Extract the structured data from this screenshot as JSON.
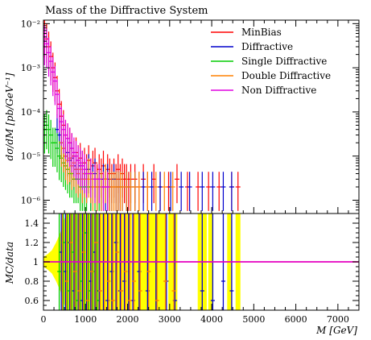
{
  "chart_data": [
    {
      "type": "scatter",
      "panel": "main",
      "title": "Mass of the Diffractive System",
      "ylabel": "dσ/dM [pb/GeV⁻¹]",
      "xlim": [
        0,
        7500
      ],
      "ylim": [
        5e-07,
        0.012
      ],
      "yscale": "log",
      "yticks": [
        {
          "value": 1e-06,
          "label": "10⁻⁶"
        },
        {
          "value": 1e-05,
          "label": "10⁻⁵"
        },
        {
          "value": 0.0001,
          "label": "10⁻⁴"
        },
        {
          "value": 0.001,
          "label": "10⁻³"
        },
        {
          "value": 0.01,
          "label": "10⁻²"
        }
      ],
      "legend_position": "top-right",
      "series": [
        {
          "name": "MinBias",
          "color": "#ff0000",
          "x": [
            25,
            75,
            125,
            175,
            225,
            275,
            325,
            375,
            425,
            475,
            525,
            575,
            625,
            675,
            725,
            775,
            825,
            875,
            925,
            975,
            1025,
            1075,
            1125,
            1175,
            1225,
            1275,
            1325,
            1375,
            1425,
            1475,
            1525,
            1575,
            1625,
            1675,
            1725,
            1775,
            1825,
            1875,
            1925,
            1975,
            2025,
            2075,
            2175,
            2275,
            2375,
            2475,
            2625,
            2775,
            2975,
            3175,
            3425,
            3675,
            3925,
            4175,
            4475,
            4625
          ],
          "y": [
            0.006,
            0.0045,
            0.003,
            0.0018,
            0.001,
            0.0006,
            0.0003,
            0.00015,
            8e-05,
            5e-05,
            3e-05,
            2.5e-05,
            2e-05,
            1.5e-05,
            1e-05,
            1.2e-05,
            8e-06,
            9e-06,
            6e-06,
            7e-06,
            5e-06,
            8e-06,
            4e-06,
            6e-06,
            7e-06,
            3e-06,
            5e-06,
            4e-06,
            6e-06,
            3e-06,
            5e-06,
            4e-06,
            3e-06,
            4e-06,
            3e-06,
            5e-06,
            3e-06,
            4e-06,
            3e-06,
            3e-06,
            2e-06,
            3e-06,
            3e-06,
            2e-06,
            3e-06,
            2e-06,
            3e-06,
            2e-06,
            2e-06,
            3e-06,
            2e-06,
            2e-06,
            2e-06,
            2e-06,
            2e-06,
            2e-06
          ]
        },
        {
          "name": "Diffractive",
          "color": "#0000cc",
          "x": [
            325,
            375,
            425,
            475,
            525,
            575,
            625,
            675,
            725,
            775,
            825,
            875,
            925,
            975,
            1025,
            1075,
            1125,
            1175,
            1225,
            1275,
            1325,
            1375,
            1425,
            1475,
            1525,
            1575,
            1625,
            1675,
            1725,
            1775,
            1825,
            1875,
            1975,
            2075,
            2175,
            2375,
            2575,
            2775,
            3025,
            3275,
            3475,
            3775,
            4025,
            4275,
            4475
          ],
          "y": [
            4e-05,
            3e-05,
            2e-05,
            1.5e-05,
            1e-05,
            1.2e-05,
            8e-06,
            9e-06,
            6e-06,
            5e-06,
            4e-06,
            6e-06,
            3e-06,
            4e-06,
            3e-06,
            5e-06,
            2e-06,
            3e-06,
            4e-06,
            2e-06,
            3e-06,
            2e-06,
            3e-06,
            2e-06,
            3e-06,
            2e-06,
            2e-06,
            3e-06,
            2e-06,
            2e-06,
            2e-06,
            2e-06,
            2e-06,
            2e-06,
            2e-06,
            2e-06,
            2e-06,
            2e-06,
            2e-06,
            2e-06,
            2e-06,
            2e-06,
            2e-06,
            2e-06,
            2e-06
          ]
        },
        {
          "name": "Single Diffractive",
          "color": "#00cc00",
          "x": [
            25,
            75,
            125,
            175,
            225,
            275,
            325,
            375,
            425,
            475,
            525,
            575,
            625,
            675,
            725,
            775,
            825,
            875,
            925,
            975,
            1025,
            1125,
            1225,
            1325
          ],
          "y": [
            4e-05,
            5e-05,
            4e-05,
            3e-05,
            2e-05,
            2e-05,
            1.5e-05,
            1e-05,
            9e-06,
            7e-06,
            6e-06,
            5e-06,
            4e-06,
            4e-06,
            3e-06,
            3e-06,
            3e-06,
            2e-06,
            2e-06,
            2e-06,
            2e-06,
            2e-06,
            2e-06,
            2e-06
          ]
        },
        {
          "name": "Double Diffractive",
          "color": "#ff8000",
          "x": [
            425,
            475,
            525,
            575,
            625,
            675,
            725,
            775,
            825,
            875,
            925,
            975,
            1025,
            1075,
            1125,
            1175,
            1225,
            1275,
            1325,
            1375,
            1425,
            1475,
            1525,
            1575,
            1625,
            1675,
            1725,
            1775,
            1825,
            1875,
            1975,
            2075,
            2175,
            2275,
            2475,
            2675,
            2875,
            3075
          ],
          "y": [
            2e-05,
            1.5e-05,
            1e-05,
            8e-06,
            9e-06,
            6e-06,
            7e-06,
            5e-06,
            4e-06,
            5e-06,
            3e-06,
            4e-06,
            3e-06,
            4e-06,
            3e-06,
            2e-06,
            3e-06,
            2e-06,
            3e-06,
            2e-06,
            2e-06,
            3e-06,
            2e-06,
            2e-06,
            2e-06,
            2e-06,
            2e-06,
            2e-06,
            2e-06,
            2e-06,
            2e-06,
            2e-06,
            2e-06,
            2e-06,
            2e-06,
            2e-06,
            2e-06,
            2e-06
          ]
        },
        {
          "name": "Non Diffractive",
          "color": "#e000e0",
          "x": [
            25,
            75,
            125,
            175,
            225,
            275,
            325,
            375,
            425,
            475,
            525,
            575,
            625,
            675,
            725,
            775,
            825,
            875,
            925,
            975,
            1025,
            1125,
            1225,
            1325,
            1425,
            1525
          ],
          "y": [
            0.004,
            0.0035,
            0.0022,
            0.0014,
            0.0008,
            0.0005,
            0.00025,
            0.00012,
            6e-05,
            4e-05,
            3e-05,
            2.5e-05,
            2e-05,
            1.5e-05,
            1.2e-05,
            1e-05,
            8e-06,
            7e-06,
            6e-06,
            5e-06,
            4e-06,
            4e-06,
            3e-06,
            3e-06,
            2e-06,
            2e-06
          ]
        }
      ]
    },
    {
      "type": "scatter",
      "panel": "ratio",
      "ylabel": "MC/data",
      "xlabel": "M [GeV]",
      "xlim": [
        0,
        7500
      ],
      "ylim": [
        0.5,
        1.5
      ],
      "xticks": [
        0,
        1000,
        2000,
        3000,
        4000,
        5000,
        6000,
        7000
      ],
      "yticks": [
        0.6,
        0.8,
        1,
        1.2,
        1.4
      ],
      "reference_line": 1,
      "band": {
        "color": "#ffff00",
        "center": 1,
        "half_width": [
          [
            0,
            0.05
          ],
          [
            100,
            0.08
          ],
          [
            200,
            0.12
          ],
          [
            300,
            0.2
          ],
          [
            400,
            0.3
          ],
          [
            500,
            0.45
          ],
          [
            600,
            0.5
          ],
          [
            700,
            0.5
          ],
          [
            800,
            0.5
          ],
          [
            1000,
            0.5
          ],
          [
            1500,
            0.5
          ],
          [
            2000,
            0.5
          ],
          [
            2100,
            0.5
          ]
        ],
        "bars": [
          2175,
          2275,
          2375,
          2475,
          2575,
          2675,
          2775,
          2875,
          3025,
          3125,
          3725,
          3825,
          3975,
          4425,
          4625
        ]
      },
      "series": [
        {
          "name": "Diffractive",
          "color": "#0000cc",
          "x": [
            425,
            525,
            625,
            725,
            825,
            925,
            1025,
            1125,
            1225,
            1325,
            1425,
            1525,
            1625,
            1725,
            1825,
            1925,
            2025,
            2125,
            2275,
            2475,
            2675,
            2925,
            3125,
            3775,
            4025,
            4275,
            4475
          ],
          "y": [
            1.1,
            0.9,
            1.2,
            0.7,
            1.0,
            0.6,
            1.3,
            0.8,
            1.1,
            0.7,
            1.0,
            0.6,
            0.9,
            1.2,
            0.7,
            0.8,
            1.0,
            0.6,
            0.9,
            0.7,
            1.0,
            0.8,
            0.6,
            0.7,
            0.6,
            0.8,
            0.7
          ]
        },
        {
          "name": "Single Diffractive",
          "color": "#00cc00",
          "x": [
            375,
            475,
            575,
            675,
            775,
            875,
            975,
            1075,
            1175,
            1275
          ],
          "y": [
            0.9,
            1.2,
            0.7,
            1.1,
            0.6,
            0.8,
            1.3,
            0.7,
            0.9,
            0.6
          ]
        },
        {
          "name": "Double Diffractive",
          "color": "#ff8000",
          "x": [
            450,
            550,
            650,
            750,
            850,
            950,
            1050,
            1150,
            1250,
            1350,
            1450,
            1550,
            1650,
            1750,
            1850,
            1950,
            2050,
            2150,
            2300,
            2500,
            2700,
            2900,
            3100
          ],
          "y": [
            1.0,
            0.8,
            1.2,
            0.9,
            0.7,
            1.1,
            0.6,
            0.9,
            1.2,
            0.7,
            1.0,
            0.8,
            0.6,
            1.1,
            0.7,
            0.9,
            0.6,
            0.8,
            0.7,
            0.9,
            0.6,
            0.8,
            0.7
          ]
        },
        {
          "name": "MinBias",
          "color": "#ff0000",
          "x": [
            0,
            7500
          ],
          "y": [
            1,
            1
          ]
        },
        {
          "name": "Non Diffractive",
          "color": "#e000e0",
          "x": [
            0,
            7500
          ],
          "y": [
            1,
            1
          ]
        }
      ]
    }
  ]
}
